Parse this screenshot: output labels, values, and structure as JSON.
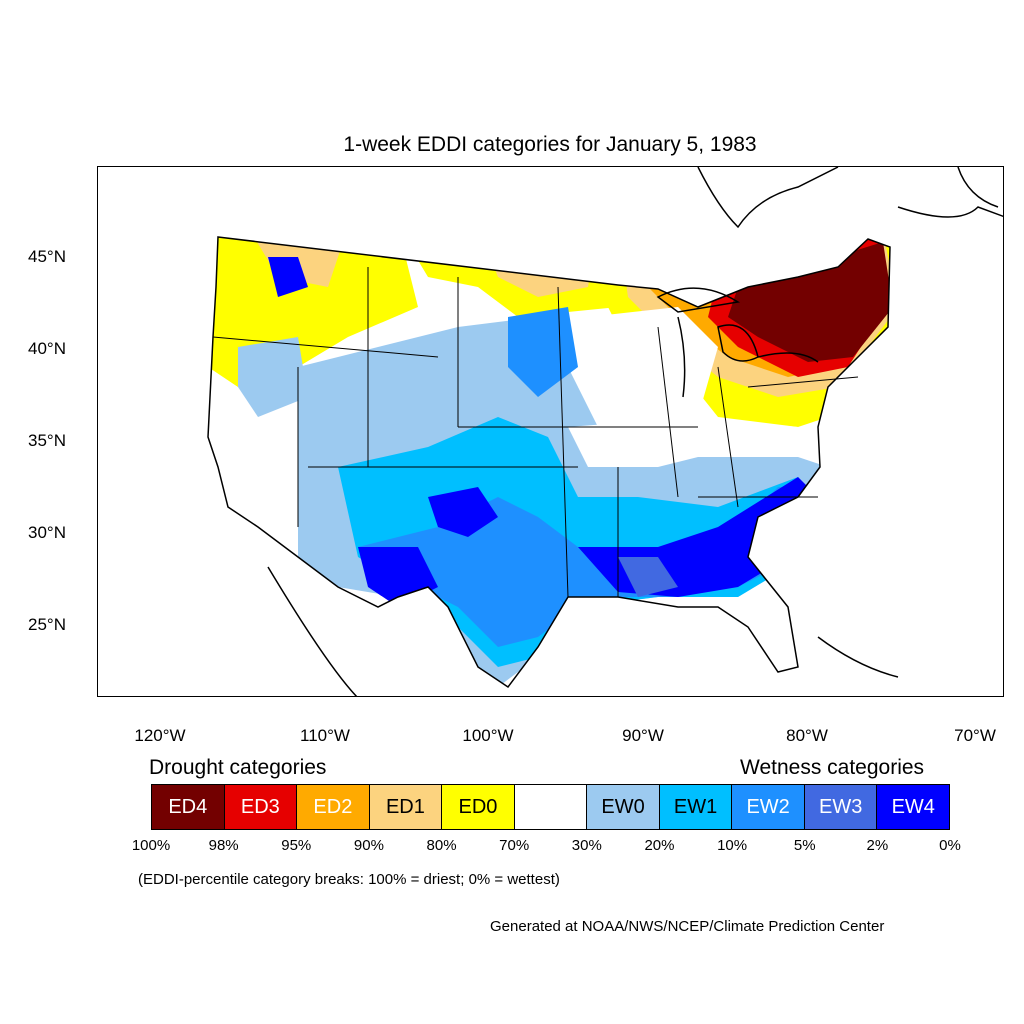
{
  "title": "1-week EDDI categories for January 5, 1983",
  "lat_ticks": [
    "45°N",
    "40°N",
    "35°N",
    "30°N",
    "25°N"
  ],
  "lon_ticks": [
    "120°W",
    "110°W",
    "100°W",
    "90°W",
    "80°W",
    "70°W"
  ],
  "legend": {
    "drought_label": "Drought categories",
    "wetness_label": "Wetness categories",
    "categories": [
      {
        "label": "ED4",
        "color": "#730000",
        "text_color": "#ffffff"
      },
      {
        "label": "ED3",
        "color": "#e60000",
        "text_color": "#ffffff"
      },
      {
        "label": "ED2",
        "color": "#ffaa00",
        "text_color": "#ffffff"
      },
      {
        "label": "ED1",
        "color": "#fcd37f",
        "text_color": "#000000"
      },
      {
        "label": "ED0",
        "color": "#ffff00",
        "text_color": "#000000"
      },
      {
        "label": "",
        "color": "#ffffff",
        "text_color": "#000000"
      },
      {
        "label": "EW0",
        "color": "#9ccaf0",
        "text_color": "#000000"
      },
      {
        "label": "EW1",
        "color": "#00bfff",
        "text_color": "#000000"
      },
      {
        "label": "EW2",
        "color": "#1e90ff",
        "text_color": "#ffffff"
      },
      {
        "label": "EW3",
        "color": "#4169e1",
        "text_color": "#ffffff"
      },
      {
        "label": "EW4",
        "color": "#0000ff",
        "text_color": "#ffffff"
      }
    ],
    "breaks": [
      "100%",
      "98%",
      "95%",
      "90%",
      "80%",
      "70%",
      "30%",
      "20%",
      "10%",
      "5%",
      "2%",
      "0%"
    ]
  },
  "note": "(EDDI-percentile category breaks: 100% = driest; 0% = wettest)",
  "credit": "Generated at NOAA/NWS/NCEP/Climate Prediction Center",
  "colors": {
    "ED4": "#730000",
    "ED3": "#e60000",
    "ED2": "#ffaa00",
    "ED1": "#fcd37f",
    "ED0": "#ffff00",
    "EW0": "#9ccaf0",
    "EW1": "#00bfff",
    "EW2": "#1e90ff",
    "EW3": "#4169e1",
    "EW4": "#0000ff"
  }
}
